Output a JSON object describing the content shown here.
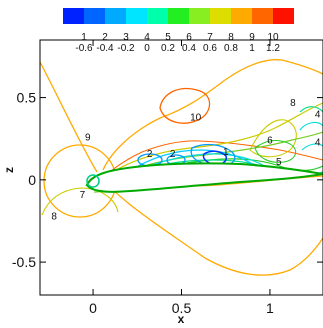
{
  "chart_data": {
    "type": "contour",
    "xlabel": "x",
    "ylabel": "z",
    "xlim": [
      -0.3,
      1.3
    ],
    "ylim": [
      -0.7,
      0.85
    ],
    "x_ticks": [
      0,
      0.5,
      1
    ],
    "x_tick_labels": [
      "0",
      "0.5",
      "1"
    ],
    "y_ticks": [
      0.5,
      0,
      -0.5
    ],
    "y_tick_labels": [
      "0.5",
      "0",
      "-0.5"
    ],
    "legend": {
      "placement": "top",
      "levels": [
        "1",
        "2",
        "3",
        "4",
        "5",
        "6",
        "7",
        "8",
        "9",
        "10"
      ],
      "values": [
        "-0.6",
        "-0.4",
        "-0.2",
        "0",
        "0.2",
        "0.4",
        "0.6",
        "0.8",
        "1",
        "1.2"
      ],
      "colors": [
        "#0022ff",
        "#0066ff",
        "#00aaff",
        "#00e5ff",
        "#00ffaa",
        "#22ee22",
        "#88ee22",
        "#dddd00",
        "#ffaa00",
        "#ff6600",
        "#ff1100"
      ]
    },
    "level_colors": {
      "1": "#0033ff",
      "2": "#0099ff",
      "3": "#00ccff",
      "4": "#00dddd",
      "5": "#00dd88",
      "6": "#22cc22",
      "7": "#77cc22",
      "8": "#cccc00",
      "9": "#ffaa00",
      "10": "#ff6600"
    },
    "contour_labels": [
      {
        "text": "10",
        "x": 0.58,
        "z": 0.36,
        "level": "10"
      },
      {
        "text": "8",
        "x": 1.13,
        "z": 0.45,
        "level": "8"
      },
      {
        "text": "4",
        "x": 1.27,
        "z": 0.38,
        "level": "4"
      },
      {
        "text": "9",
        "x": -0.03,
        "z": 0.24,
        "level": "9"
      },
      {
        "text": "6",
        "x": 1.0,
        "z": 0.22,
        "level": "6"
      },
      {
        "text": "4",
        "x": 1.27,
        "z": 0.21,
        "level": "4"
      },
      {
        "text": "2",
        "x": 0.32,
        "z": 0.14,
        "level": "2"
      },
      {
        "text": "2",
        "x": 0.45,
        "z": 0.14,
        "level": "2"
      },
      {
        "text": "1",
        "x": 0.75,
        "z": 0.15,
        "level": "1"
      },
      {
        "text": "5",
        "x": 1.05,
        "z": 0.09,
        "level": "5"
      },
      {
        "text": "7",
        "x": -0.06,
        "z": -0.11,
        "level": "7"
      },
      {
        "text": "8",
        "x": -0.22,
        "z": -0.24,
        "level": "8"
      }
    ]
  }
}
